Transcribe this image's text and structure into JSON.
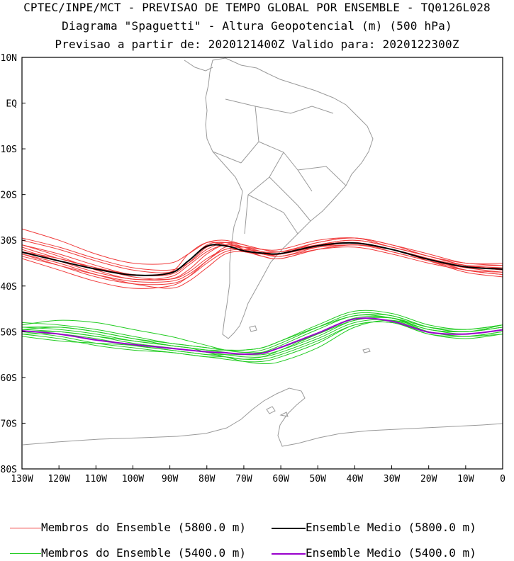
{
  "title": {
    "line1": "CPTEC/INPE/MCT - PREVISAO DE TEMPO GLOBAL POR ENSEMBLE - TQ0126L028",
    "line2": "Diagrama \"Spaguetti\" - Altura Geopotencial (m) (500 hPa)",
    "line3": "Previsao a partir de: 2020121400Z  Valido para: 2020122300Z"
  },
  "axes": {
    "lat_labels": [
      "10N",
      "EQ",
      "10S",
      "20S",
      "30S",
      "40S",
      "50S",
      "60S",
      "70S",
      "80S"
    ],
    "lon_labels": [
      "130W",
      "120W",
      "110W",
      "100W",
      "90W",
      "80W",
      "70W",
      "60W",
      "50W",
      "40W",
      "30W",
      "20W",
      "10W",
      "0"
    ]
  },
  "chart_data": {
    "type": "line",
    "x_unit": "longitude (deg, negative = W)",
    "y_unit": "latitude (deg, negative = S)",
    "xlim": [
      -130,
      0
    ],
    "ylim": [
      -80,
      10
    ],
    "grid": false,
    "legend_placement": "bottom",
    "x": [
      -130,
      -120,
      -110,
      -100,
      -90,
      -85,
      -80,
      -75,
      -70,
      -65,
      -60,
      -50,
      -40,
      -30,
      -20,
      -10,
      0
    ],
    "series": [
      {
        "name": "Ensemble Medio (5800.0 m)",
        "color": "#000000",
        "role": "mean",
        "values": [
          -32.6,
          -34.5,
          -36.3,
          -37.6,
          -37.2,
          -34.5,
          -31.3,
          -31.2,
          -32.3,
          -32.8,
          -32.9,
          -31.2,
          -30.6,
          -32.0,
          -34.2,
          -35.8,
          -36.3
        ]
      },
      {
        "name": "Ensemble Medio (5400.0 m)",
        "color": "#9900cc",
        "role": "mean",
        "values": [
          -49.8,
          -50.5,
          -51.8,
          -52.8,
          -53.6,
          -54.0,
          -54.4,
          -54.6,
          -54.9,
          -54.7,
          -53.4,
          -50.3,
          -47.2,
          -47.7,
          -50.1,
          -50.5,
          -49.6
        ]
      },
      {
        "role": "member",
        "color": "#f03c3c",
        "values": [
          -31.0,
          -33.0,
          -35.5,
          -37.5,
          -37.0,
          -33.0,
          -30.5,
          -31.0,
          -32.5,
          -33.0,
          -33.0,
          -31.0,
          -30.0,
          -31.5,
          -33.5,
          -35.5,
          -36.0
        ]
      },
      {
        "role": "member",
        "color": "#f03c3c",
        "values": [
          -33.5,
          -35.5,
          -37.5,
          -39.0,
          -39.0,
          -37.5,
          -34.5,
          -31.5,
          -31.5,
          -32.5,
          -33.5,
          -31.5,
          -30.5,
          -32.5,
          -34.5,
          -36.5,
          -37.5
        ]
      },
      {
        "role": "member",
        "color": "#f03c3c",
        "values": [
          -29.5,
          -31.5,
          -34.0,
          -36.0,
          -36.5,
          -35.0,
          -32.0,
          -30.5,
          -31.0,
          -32.0,
          -32.5,
          -30.5,
          -29.5,
          -31.0,
          -33.0,
          -35.0,
          -35.0
        ]
      },
      {
        "role": "member",
        "color": "#f03c3c",
        "values": [
          -32.0,
          -34.5,
          -37.0,
          -38.5,
          -38.5,
          -36.5,
          -33.0,
          -31.0,
          -32.0,
          -33.5,
          -34.0,
          -32.0,
          -31.0,
          -32.5,
          -34.5,
          -36.0,
          -37.0
        ]
      },
      {
        "role": "member",
        "color": "#f03c3c",
        "values": [
          -34.0,
          -36.5,
          -39.0,
          -40.5,
          -40.0,
          -38.0,
          -34.5,
          -32.0,
          -32.0,
          -32.5,
          -33.0,
          -31.0,
          -30.0,
          -31.5,
          -33.5,
          -35.5,
          -36.5
        ]
      },
      {
        "role": "member",
        "color": "#f03c3c",
        "values": [
          -27.5,
          -30.0,
          -33.0,
          -35.0,
          -35.0,
          -33.0,
          -30.5,
          -30.0,
          -31.0,
          -32.0,
          -32.5,
          -31.5,
          -30.5,
          -32.0,
          -34.0,
          -36.0,
          -36.0
        ]
      },
      {
        "role": "member",
        "color": "#f03c3c",
        "values": [
          -31.5,
          -34.0,
          -36.0,
          -37.5,
          -37.5,
          -35.0,
          -31.5,
          -30.5,
          -31.5,
          -33.0,
          -33.0,
          -30.5,
          -29.5,
          -31.5,
          -33.5,
          -35.5,
          -36.5
        ]
      },
      {
        "role": "member",
        "color": "#f03c3c",
        "values": [
          -33.0,
          -35.5,
          -38.0,
          -39.5,
          -39.5,
          -38.0,
          -35.0,
          -32.5,
          -32.0,
          -32.5,
          -33.0,
          -31.5,
          -31.0,
          -32.0,
          -34.0,
          -36.5,
          -37.5
        ]
      },
      {
        "role": "member",
        "color": "#f03c3c",
        "values": [
          -30.0,
          -32.0,
          -34.5,
          -36.5,
          -37.0,
          -34.5,
          -31.0,
          -30.5,
          -32.0,
          -33.0,
          -33.5,
          -32.0,
          -31.5,
          -33.0,
          -35.0,
          -36.5,
          -37.0
        ]
      },
      {
        "role": "member",
        "color": "#f03c3c",
        "values": [
          -32.5,
          -34.0,
          -36.0,
          -38.0,
          -38.5,
          -37.0,
          -34.0,
          -32.0,
          -31.5,
          -32.0,
          -32.0,
          -30.0,
          -29.5,
          -31.0,
          -33.5,
          -35.0,
          -35.5
        ]
      },
      {
        "role": "member",
        "color": "#f03c3c",
        "values": [
          -31.0,
          -33.5,
          -36.5,
          -38.5,
          -38.0,
          -35.5,
          -32.5,
          -31.0,
          -31.5,
          -32.5,
          -32.5,
          -31.0,
          -30.5,
          -32.0,
          -34.0,
          -35.5,
          -35.5
        ]
      },
      {
        "role": "member",
        "color": "#f03c3c",
        "values": [
          -33.0,
          -35.0,
          -37.5,
          -39.5,
          -40.5,
          -39.0,
          -36.0,
          -33.0,
          -32.5,
          -33.5,
          -34.0,
          -32.0,
          -31.0,
          -32.0,
          -34.5,
          -37.0,
          -38.0
        ]
      },
      {
        "role": "member",
        "color": "#22cc22",
        "values": [
          -49.0,
          -49.5,
          -50.5,
          -52.0,
          -53.0,
          -53.5,
          -54.0,
          -54.5,
          -55.0,
          -55.0,
          -54.0,
          -51.0,
          -47.5,
          -47.0,
          -49.5,
          -50.0,
          -49.0
        ]
      },
      {
        "role": "member",
        "color": "#22cc22",
        "values": [
          -50.5,
          -51.5,
          -53.0,
          -54.0,
          -54.5,
          -55.0,
          -55.5,
          -55.5,
          -56.0,
          -56.0,
          -55.0,
          -52.0,
          -48.5,
          -48.0,
          -50.5,
          -51.0,
          -50.0
        ]
      },
      {
        "role": "member",
        "color": "#22cc22",
        "values": [
          -48.0,
          -48.5,
          -49.5,
          -51.0,
          -52.5,
          -53.0,
          -53.5,
          -54.0,
          -54.0,
          -53.5,
          -52.0,
          -48.5,
          -45.5,
          -46.0,
          -48.5,
          -49.5,
          -48.5
        ]
      },
      {
        "role": "member",
        "color": "#22cc22",
        "values": [
          -50.0,
          -50.0,
          -51.0,
          -52.5,
          -53.5,
          -54.0,
          -54.5,
          -55.0,
          -55.5,
          -55.5,
          -54.5,
          -51.5,
          -48.0,
          -47.5,
          -50.0,
          -51.0,
          -50.5
        ]
      },
      {
        "role": "member",
        "color": "#22cc22",
        "values": [
          -49.5,
          -49.0,
          -50.0,
          -51.5,
          -53.0,
          -53.5,
          -54.5,
          -55.5,
          -56.5,
          -57.0,
          -56.5,
          -53.5,
          -49.0,
          -47.5,
          -49.5,
          -50.5,
          -49.5
        ]
      },
      {
        "role": "member",
        "color": "#22cc22",
        "values": [
          -51.0,
          -52.0,
          -52.5,
          -53.0,
          -54.0,
          -54.5,
          -55.0,
          -55.0,
          -55.0,
          -54.5,
          -53.0,
          -49.5,
          -46.5,
          -47.0,
          -49.5,
          -50.0,
          -49.0
        ]
      },
      {
        "role": "member",
        "color": "#22cc22",
        "values": [
          -48.5,
          -47.5,
          -48.0,
          -49.5,
          -51.0,
          -52.0,
          -53.0,
          -54.0,
          -54.5,
          -54.0,
          -52.5,
          -49.0,
          -46.0,
          -46.5,
          -49.0,
          -50.0,
          -48.5
        ]
      },
      {
        "role": "member",
        "color": "#22cc22",
        "values": [
          -50.0,
          -51.0,
          -52.5,
          -53.5,
          -54.5,
          -55.0,
          -55.5,
          -56.0,
          -56.5,
          -56.5,
          -55.5,
          -52.5,
          -48.5,
          -48.0,
          -50.5,
          -51.5,
          -50.5
        ]
      },
      {
        "role": "member",
        "color": "#22cc22",
        "values": [
          -49.0,
          -49.0,
          -50.0,
          -51.5,
          -52.5,
          -53.0,
          -53.5,
          -54.0,
          -54.5,
          -54.5,
          -53.5,
          -50.5,
          -47.5,
          -47.0,
          -49.0,
          -49.5,
          -48.5
        ]
      },
      {
        "role": "member",
        "color": "#22cc22",
        "values": [
          -50.5,
          -50.5,
          -51.5,
          -53.0,
          -54.0,
          -54.5,
          -55.0,
          -55.5,
          -56.0,
          -55.5,
          -54.0,
          -50.5,
          -47.0,
          -47.0,
          -50.0,
          -51.0,
          -50.0
        ]
      },
      {
        "role": "member",
        "color": "#22cc22",
        "values": [
          -49.5,
          -50.0,
          -51.0,
          -52.0,
          -53.0,
          -53.5,
          -54.0,
          -54.0,
          -54.0,
          -53.5,
          -52.0,
          -49.0,
          -46.5,
          -46.5,
          -49.0,
          -50.0,
          -49.0
        ]
      }
    ]
  },
  "legend": {
    "items": [
      {
        "label": "Membros do Ensemble (5800.0 m)",
        "color": "#f03c3c"
      },
      {
        "label": "Ensemble Medio (5800.0 m)",
        "color": "#000000"
      },
      {
        "label": "Membros do Ensemble (5400.0 m)",
        "color": "#22cc22"
      },
      {
        "label": "Ensemble Medio (5400.0 m)",
        "color": "#9900cc"
      }
    ]
  },
  "colors": {
    "coast": "#9a9a9a",
    "frame": "#000000"
  }
}
